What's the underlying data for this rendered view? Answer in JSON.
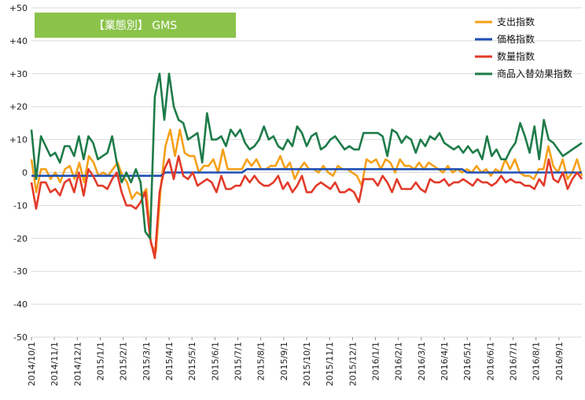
{
  "chart_data": {
    "type": "line",
    "title": "【業態別】 GMS",
    "ylim": [
      -50,
      50
    ],
    "y_ticks": [
      "+50",
      "+40",
      "+30",
      "+20",
      "+10",
      "0",
      "-10",
      "-20",
      "-30",
      "-40",
      "-50"
    ],
    "x_tick_labels": [
      "2014/10/1",
      "2014/11/1",
      "2014/12/1",
      "2015/1/1",
      "2015/2/1",
      "2015/3/1",
      "2015/4/1",
      "2015/5/1",
      "2015/6/1",
      "2015/7/1",
      "2015/8/1",
      "2015/9/1",
      "2015/10/1",
      "2015/11/1",
      "2015/12/1",
      "2016/1/1",
      "2016/2/1",
      "2016/3/1",
      "2016/4/1",
      "2016/5/1",
      "2016/6/1",
      "2016/7/1",
      "2016/8/1",
      "2016/9/1"
    ],
    "legend_position": "top-right",
    "series": [
      {
        "name": "支出指数",
        "color": "#f5a01a",
        "values": [
          4,
          -6,
          1,
          1,
          -2,
          0,
          -3,
          1,
          2,
          -2,
          3,
          -3,
          5,
          3,
          -1,
          0,
          -1,
          1,
          3,
          -1,
          -3,
          -8,
          -6,
          -7,
          -5,
          -22,
          -24,
          -5,
          8,
          13,
          5,
          13,
          6,
          5,
          5,
          0,
          2,
          2,
          4,
          0,
          7,
          1,
          1,
          1,
          1,
          4,
          2,
          4,
          1,
          1,
          2,
          2,
          5,
          1,
          3,
          -2,
          1,
          3,
          1,
          1,
          0,
          2,
          0,
          -1,
          2,
          1,
          1,
          0,
          -1,
          -4,
          4,
          3,
          4,
          1,
          4,
          3,
          0,
          4,
          2,
          2,
          1,
          3,
          1,
          3,
          2,
          1,
          0,
          2,
          0,
          1,
          0,
          1,
          0,
          2,
          0,
          1,
          -1,
          1,
          0,
          4,
          1,
          4,
          0,
          -1,
          -1,
          -2,
          1,
          1,
          8,
          2,
          0,
          4,
          -2,
          0,
          4,
          -1
        ]
      },
      {
        "name": "価格指数",
        "color": "#1f4fb5",
        "values": [
          -1,
          -1,
          -1,
          -1,
          -1,
          -1,
          -1,
          -1,
          -1,
          -1,
          -1,
          -1,
          -1,
          -1,
          -1,
          -1,
          -1,
          -1,
          -1,
          -1,
          -1,
          -1,
          -1,
          -1,
          -1,
          -1,
          -1,
          -1,
          0,
          0,
          0,
          0,
          0,
          0,
          0,
          0,
          0,
          0,
          0,
          0,
          0,
          0,
          0,
          0,
          0,
          1,
          1,
          1,
          1,
          1,
          1,
          1,
          1,
          1,
          1,
          1,
          1,
          1,
          1,
          1,
          1,
          1,
          1,
          1,
          1,
          1,
          1,
          1,
          1,
          1,
          1,
          1,
          1,
          1,
          1,
          1,
          1,
          1,
          1,
          1,
          1,
          1,
          1,
          1,
          1,
          1,
          1,
          1,
          1,
          1,
          1,
          0,
          0,
          0,
          0,
          0,
          0,
          0,
          0,
          0,
          0,
          0,
          0,
          0,
          0,
          0,
          0,
          0,
          0,
          0,
          0,
          0,
          0,
          0,
          0,
          0
        ]
      },
      {
        "name": "数量指数",
        "color": "#e23a2a",
        "values": [
          -3,
          -11,
          -3,
          -3,
          -6,
          -5,
          -7,
          -3,
          -2,
          -6,
          0,
          -7,
          1,
          -1,
          -4,
          -4,
          -5,
          -2,
          0,
          -6,
          -10,
          -10,
          -11,
          -9,
          -6,
          -20,
          -26,
          -6,
          1,
          4,
          -2,
          5,
          -1,
          -2,
          0,
          -4,
          -3,
          -2,
          -3,
          -6,
          -1,
          -5,
          -5,
          -4,
          -4,
          -1,
          -3,
          -1,
          -3,
          -4,
          -4,
          -3,
          -1,
          -5,
          -3,
          -6,
          -4,
          -1,
          -6,
          -6,
          -4,
          -3,
          -4,
          -5,
          -3,
          -6,
          -6,
          -5,
          -6,
          -9,
          -2,
          -2,
          -2,
          -4,
          -1,
          -3,
          -6,
          -2,
          -5,
          -5,
          -5,
          -3,
          -5,
          -6,
          -2,
          -3,
          -3,
          -2,
          -4,
          -3,
          -3,
          -2,
          -3,
          -4,
          -2,
          -3,
          -3,
          -4,
          -3,
          -1,
          -3,
          -2,
          -3,
          -3,
          -4,
          -4,
          -5,
          -2,
          -4,
          4,
          -2,
          -3,
          0,
          -5,
          -2,
          0,
          -2
        ]
      },
      {
        "name": "商品入替効果指数",
        "color": "#1e7b49",
        "values": [
          13,
          -2,
          11,
          8,
          5,
          6,
          3,
          8,
          8,
          5,
          11,
          4,
          11,
          9,
          4,
          5,
          6,
          11,
          3,
          -3,
          0,
          -3,
          1,
          -3,
          -18,
          -20,
          23,
          30,
          16,
          30,
          20,
          16,
          15,
          10,
          11,
          12,
          3,
          18,
          10,
          10,
          11,
          8,
          13,
          11,
          13,
          9,
          7,
          8,
          10,
          14,
          10,
          11,
          8,
          7,
          10,
          8,
          14,
          12,
          8,
          11,
          12,
          7,
          8,
          10,
          11,
          9,
          7,
          8,
          7,
          7,
          12,
          12,
          12,
          12,
          11,
          5,
          13,
          12,
          9,
          11,
          10,
          6,
          10,
          8,
          11,
          10,
          12,
          9,
          8,
          7,
          8,
          6,
          8,
          6,
          7,
          4,
          11,
          5,
          7,
          4,
          4,
          7,
          9,
          15,
          11,
          6,
          14,
          4,
          16,
          10,
          9,
          7,
          5,
          6,
          7,
          8,
          9
        ]
      }
    ]
  }
}
